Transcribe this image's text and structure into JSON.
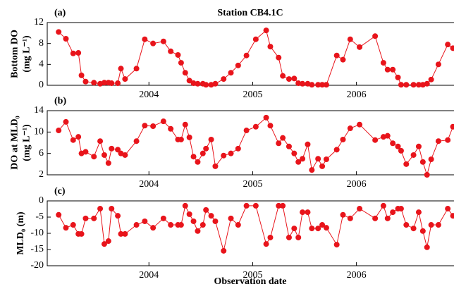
{
  "chart_data": [
    {
      "type": "line",
      "panel": "(a)",
      "title": "Station CB4.1C",
      "ylabel": [
        "Bottom DO",
        "(mg L⁻¹)"
      ],
      "color": "#e8141b",
      "x": [
        2003.13,
        2003.2,
        2003.27,
        2003.32,
        2003.35,
        2003.39,
        2003.47,
        2003.53,
        2003.57,
        2003.61,
        2003.64,
        2003.7,
        2003.73,
        2003.77,
        2003.88,
        2003.96,
        2004.04,
        2004.14,
        2004.21,
        2004.28,
        2004.31,
        2004.35,
        2004.39,
        2004.43,
        2004.47,
        2004.52,
        2004.55,
        2004.6,
        2004.64,
        2004.72,
        2004.79,
        2004.86,
        2004.94,
        2005.03,
        2005.13,
        2005.17,
        2005.25,
        2005.29,
        2005.35,
        2005.4,
        2005.44,
        2005.48,
        2005.53,
        2005.57,
        2005.63,
        2005.67,
        2005.71,
        2005.81,
        2005.87,
        2005.94,
        2006.03,
        2006.18,
        2006.26,
        2006.3,
        2006.35,
        2006.4,
        2006.43,
        2006.48,
        2006.55,
        2006.6,
        2006.64,
        2006.68,
        2006.72,
        2006.79,
        2006.88,
        2006.93
      ],
      "values": [
        10.2,
        8.9,
        6.1,
        6.2,
        1.9,
        0.7,
        0.5,
        0.3,
        0.5,
        0.5,
        0.4,
        0.4,
        3.2,
        1.2,
        3.2,
        8.8,
        8.0,
        8.4,
        6.5,
        5.8,
        4.3,
        2.4,
        0.9,
        0.4,
        0.3,
        0.3,
        0.1,
        0.1,
        0.3,
        1.2,
        2.4,
        3.8,
        5.7,
        8.8,
        10.5,
        7.4,
        5.3,
        1.8,
        1.2,
        1.3,
        0.4,
        0.3,
        0.3,
        0.1,
        0.1,
        0.1,
        0.1,
        5.7,
        4.9,
        8.8,
        7.3,
        9.4,
        4.3,
        3.0,
        3.0,
        1.5,
        0.1,
        0.1,
        0.1,
        0.1,
        0.1,
        0.3,
        1.1,
        4.0,
        7.8,
        7.1
      ],
      "xlim": [
        2003.02,
        2006.94
      ],
      "xticks": [
        2004,
        2005,
        2006
      ],
      "ylim": [
        0,
        12
      ],
      "yticks": [
        0,
        4,
        8,
        12
      ]
    },
    {
      "type": "line",
      "panel": "(b)",
      "ylabel": [
        "DO at MLD₀",
        "(mg L⁻¹)"
      ],
      "color": "#e8141b",
      "x": [
        2003.13,
        2003.2,
        2003.27,
        2003.32,
        2003.35,
        2003.39,
        2003.47,
        2003.53,
        2003.57,
        2003.61,
        2003.64,
        2003.7,
        2003.73,
        2003.77,
        2003.88,
        2003.96,
        2004.04,
        2004.14,
        2004.21,
        2004.28,
        2004.31,
        2004.35,
        2004.39,
        2004.43,
        2004.47,
        2004.52,
        2004.55,
        2004.6,
        2004.64,
        2004.72,
        2004.79,
        2004.86,
        2004.94,
        2005.03,
        2005.13,
        2005.17,
        2005.25,
        2005.29,
        2005.35,
        2005.4,
        2005.44,
        2005.48,
        2005.53,
        2005.57,
        2005.63,
        2005.67,
        2005.71,
        2005.81,
        2005.87,
        2005.94,
        2006.03,
        2006.18,
        2006.26,
        2006.3,
        2006.35,
        2006.4,
        2006.43,
        2006.48,
        2006.55,
        2006.6,
        2006.64,
        2006.68,
        2006.72,
        2006.79,
        2006.88,
        2006.93
      ],
      "values": [
        10.3,
        11.9,
        8.5,
        9.1,
        6.0,
        6.3,
        5.4,
        8.3,
        5.7,
        4.2,
        6.9,
        6.7,
        6.0,
        5.7,
        8.3,
        11.2,
        11.1,
        12.0,
        10.6,
        8.6,
        8.6,
        11.4,
        9.0,
        5.4,
        4.4,
        6.0,
        6.9,
        8.6,
        3.6,
        5.6,
        6.0,
        6.9,
        10.3,
        11.0,
        12.7,
        11.2,
        7.9,
        8.9,
        7.3,
        6.0,
        4.4,
        5.0,
        7.7,
        2.9,
        5.0,
        3.6,
        4.9,
        6.7,
        8.6,
        10.7,
        11.4,
        8.5,
        9.1,
        9.3,
        7.9,
        7.3,
        6.5,
        4.0,
        5.7,
        7.3,
        4.4,
        2.0,
        4.9,
        8.3,
        8.5,
        11.0
      ],
      "xlim": [
        2003.02,
        2006.94
      ],
      "xticks": [
        2004,
        2005,
        2006
      ],
      "ylim": [
        2,
        14
      ],
      "yticks": [
        2,
        6,
        10,
        14
      ]
    },
    {
      "type": "line",
      "panel": "(c)",
      "ylabel": [
        "MLD₀ (m)"
      ],
      "xlabel": "Observation date",
      "color": "#e8141b",
      "x": [
        2003.13,
        2003.2,
        2003.27,
        2003.32,
        2003.35,
        2003.39,
        2003.47,
        2003.53,
        2003.57,
        2003.61,
        2003.64,
        2003.7,
        2003.73,
        2003.77,
        2003.88,
        2003.96,
        2004.04,
        2004.14,
        2004.21,
        2004.28,
        2004.31,
        2004.35,
        2004.39,
        2004.43,
        2004.47,
        2004.52,
        2004.55,
        2004.6,
        2004.64,
        2004.72,
        2004.79,
        2004.86,
        2004.94,
        2005.03,
        2005.13,
        2005.17,
        2005.25,
        2005.29,
        2005.35,
        2005.4,
        2005.44,
        2005.48,
        2005.53,
        2005.57,
        2005.63,
        2005.67,
        2005.71,
        2005.81,
        2005.87,
        2005.94,
        2006.03,
        2006.18,
        2006.26,
        2006.3,
        2006.35,
        2006.4,
        2006.43,
        2006.48,
        2006.55,
        2006.6,
        2006.64,
        2006.68,
        2006.72,
        2006.79,
        2006.88,
        2006.93
      ],
      "values": [
        -4.3,
        -8.3,
        -7.4,
        -10.2,
        -10.2,
        -5.4,
        -5.4,
        -2.4,
        -13.3,
        -12.4,
        -2.4,
        -4.6,
        -10.2,
        -10.2,
        -7.4,
        -6.3,
        -8.3,
        -5.4,
        -7.4,
        -7.4,
        -7.4,
        -1.5,
        -4.1,
        -6.3,
        -9.3,
        -7.4,
        -2.8,
        -4.6,
        -6.3,
        -15.4,
        -5.4,
        -7.4,
        -1.5,
        -1.5,
        -13.3,
        -11.3,
        -1.5,
        -1.5,
        -11.3,
        -8.5,
        -11.3,
        -3.5,
        -3.5,
        -8.5,
        -8.5,
        -7.4,
        -8.3,
        -13.5,
        -4.3,
        -5.4,
        -2.4,
        -5.4,
        -1.5,
        -5.4,
        -3.5,
        -2.4,
        -2.4,
        -7.4,
        -8.5,
        -3.5,
        -9.3,
        -14.3,
        -7.4,
        -7.4,
        -2.4,
        -4.6
      ],
      "xlim": [
        2003.02,
        2006.94
      ],
      "xticks": [
        2004,
        2005,
        2006
      ],
      "ylim": [
        -20,
        0
      ],
      "yticks": [
        -20,
        -15,
        -10,
        -5,
        0
      ]
    }
  ]
}
